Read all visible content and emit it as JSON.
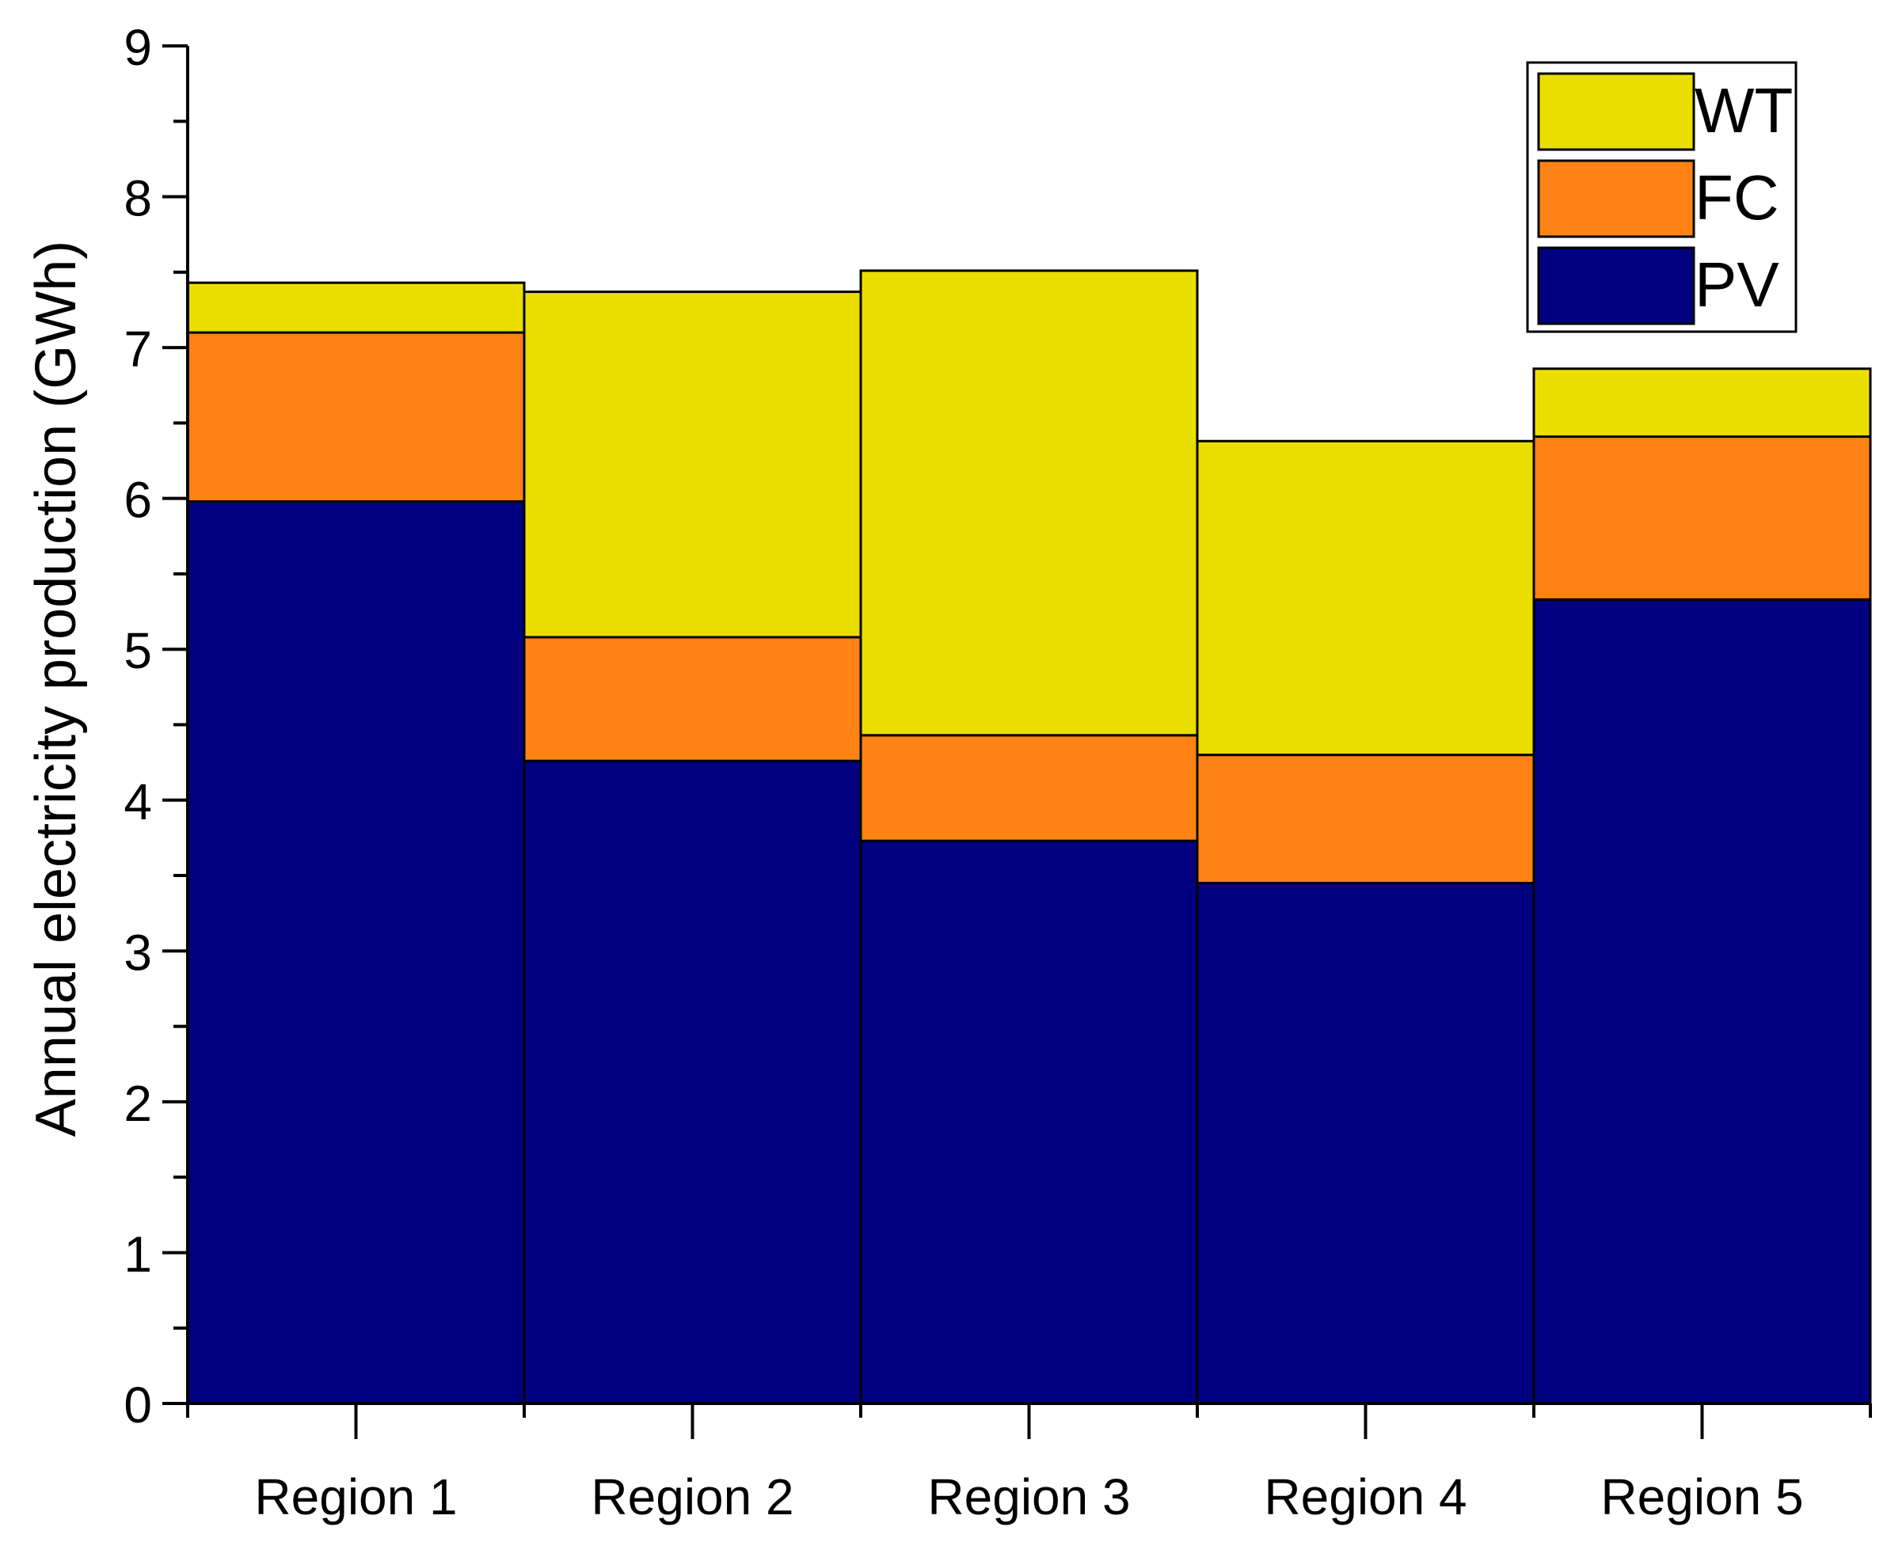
{
  "chart_data": {
    "type": "bar",
    "stacked": true,
    "title": "",
    "xlabel": "",
    "ylabel": "Annual electricity production (GWh)",
    "categories": [
      "Region 1",
      "Region 2",
      "Region 3",
      "Region 4",
      "Region 5"
    ],
    "ylim": [
      0,
      9
    ],
    "yticks": [
      "0",
      "1",
      "2",
      "3",
      "4",
      "5",
      "6",
      "7",
      "8",
      "9"
    ],
    "grid": false,
    "legend_position": "top-right",
    "series": [
      {
        "name": "PV",
        "color": "#000080",
        "values": [
          5.98,
          4.26,
          3.73,
          3.45,
          5.33
        ]
      },
      {
        "name": "FC",
        "color": "#FF8314",
        "values": [
          1.12,
          0.82,
          0.7,
          0.85,
          1.08
        ]
      },
      {
        "name": "WT",
        "color": "#EADE00",
        "values": [
          0.33,
          2.29,
          3.08,
          2.08,
          0.45
        ]
      }
    ],
    "legend_order": [
      "WT",
      "FC",
      "PV"
    ]
  }
}
